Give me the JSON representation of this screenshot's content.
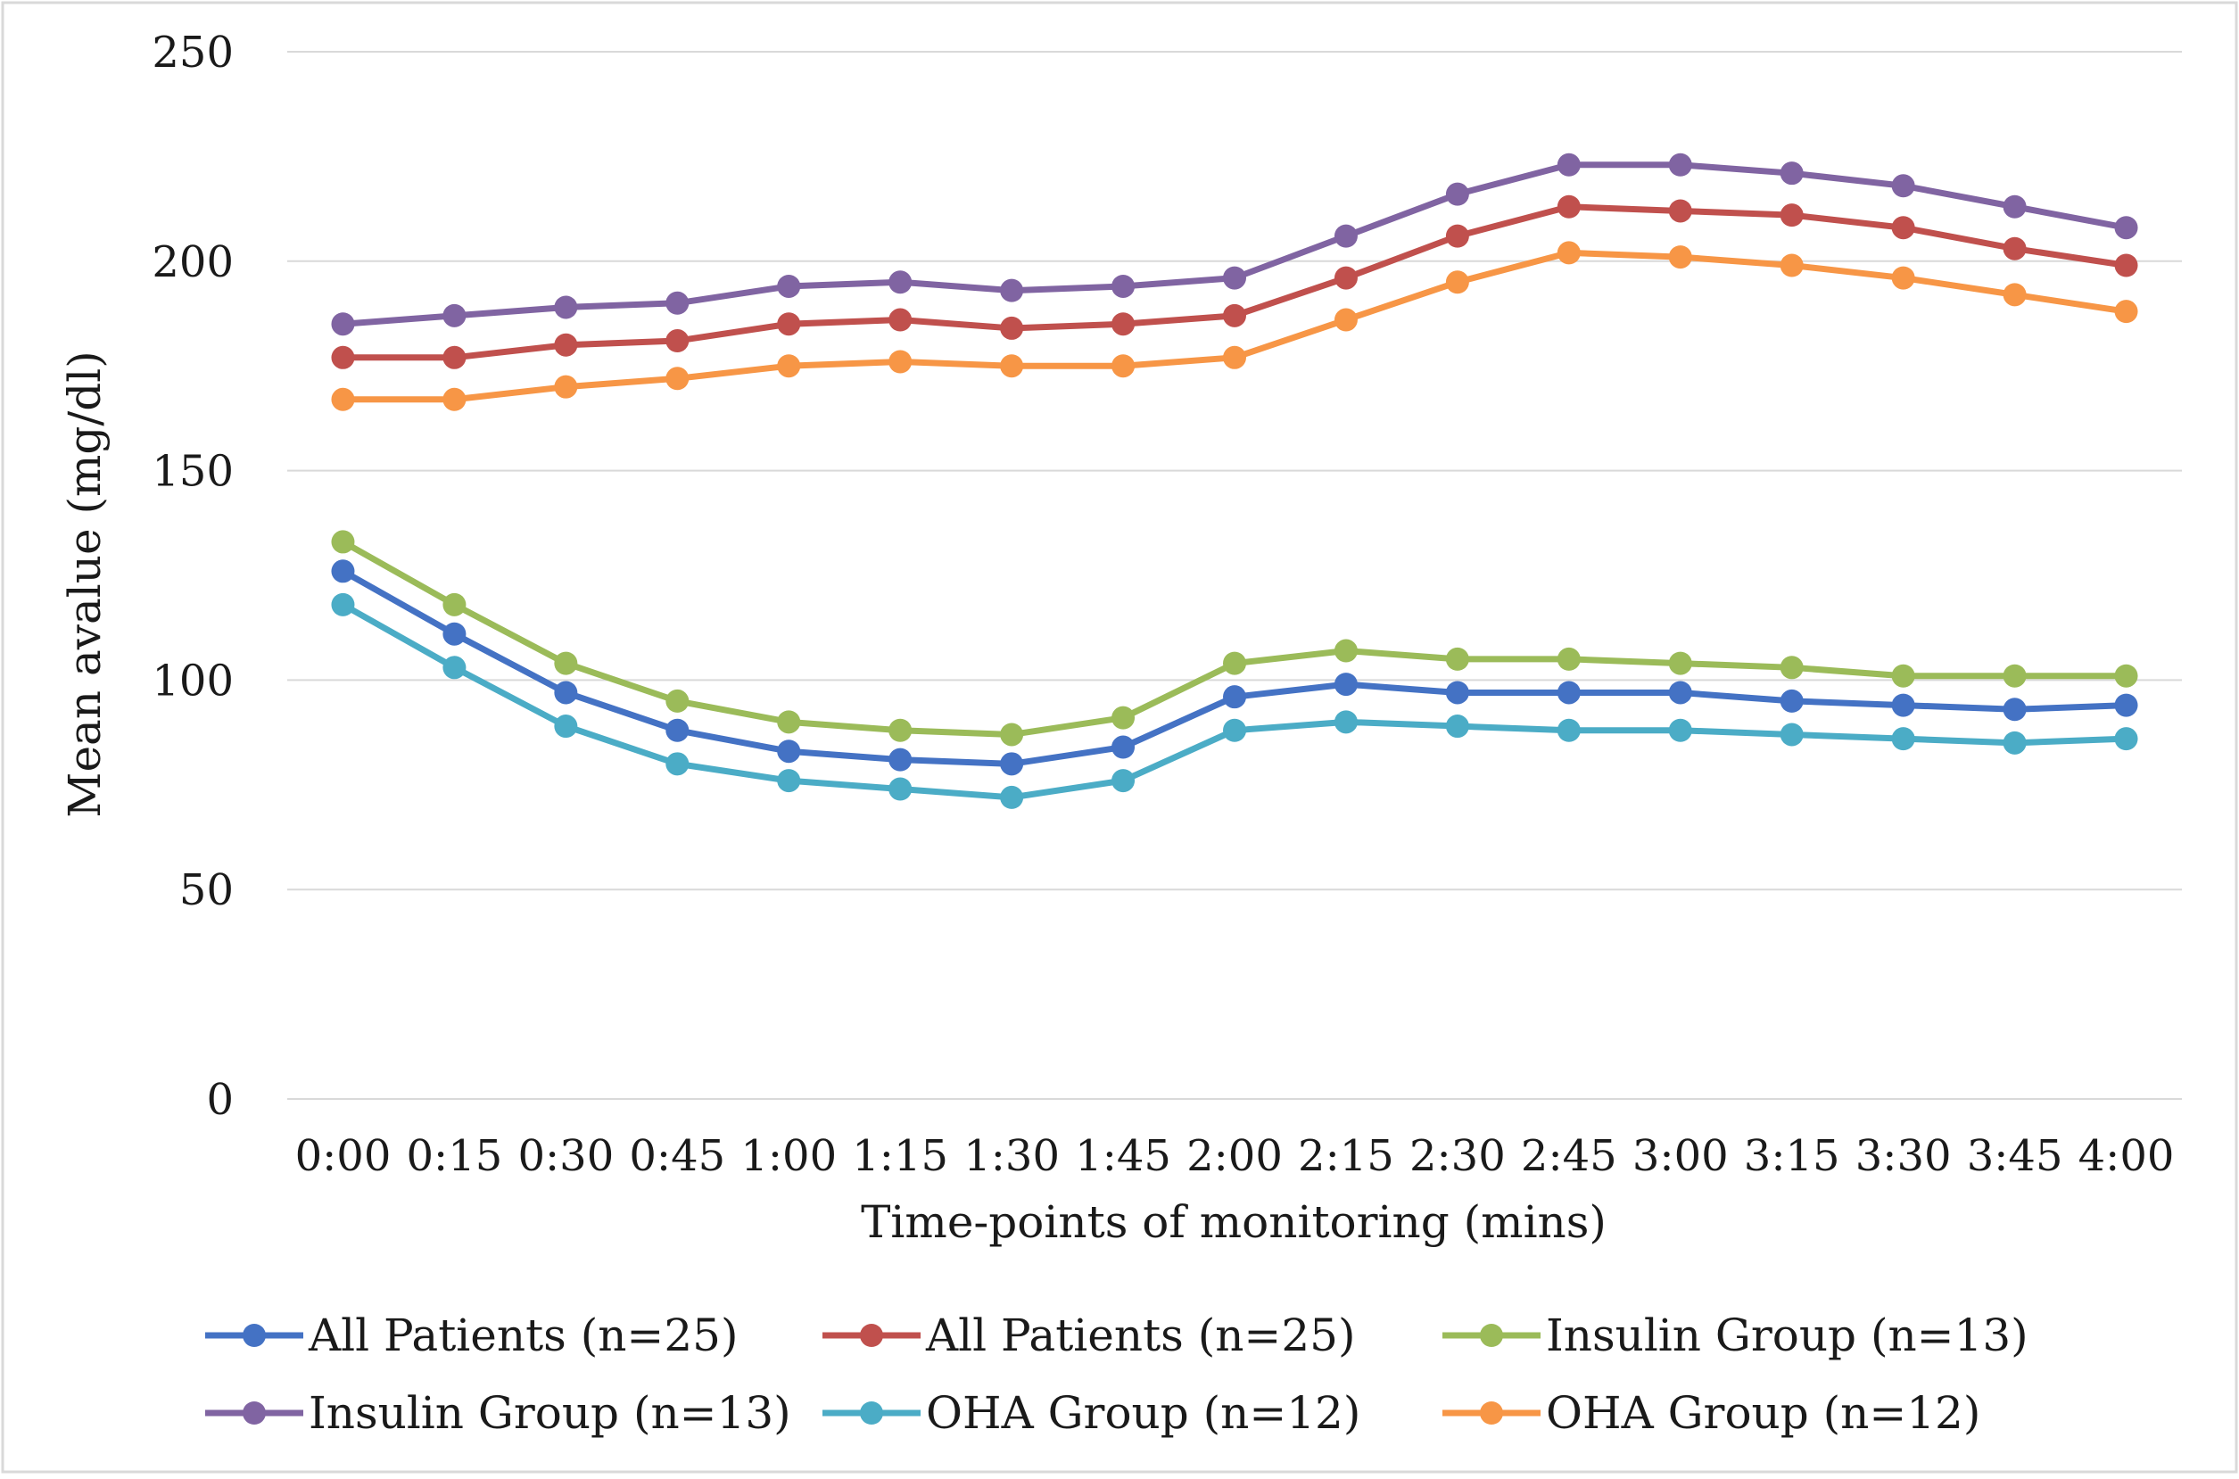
{
  "chart_data": {
    "type": "line",
    "title": "",
    "xlabel": "Time-points of monitoring (mins)",
    "ylabel": "Mean avalue (mg/dl)",
    "ylim": [
      0,
      250
    ],
    "yticks": [
      "0",
      "50",
      "100",
      "150",
      "200",
      "250"
    ],
    "categories": [
      "0:00",
      "0:15",
      "0:30",
      "0:45",
      "1:00",
      "1:15",
      "1:30",
      "1:45",
      "2:00",
      "2:15",
      "2:30",
      "2:45",
      "3:00",
      "3:15",
      "3:30",
      "3:45",
      "4:00"
    ],
    "grid": true,
    "legend_position": "bottom",
    "series": [
      {
        "name": "All Patients (n=25)",
        "color": "#4472c4",
        "values": [
          126,
          111,
          97,
          88,
          83,
          81,
          80,
          84,
          96,
          99,
          97,
          97,
          97,
          95,
          94,
          93,
          94
        ]
      },
      {
        "name": "All Patients (n=25)",
        "color": "#c0504d",
        "values": [
          177,
          177,
          180,
          181,
          185,
          186,
          184,
          185,
          187,
          196,
          206,
          213,
          212,
          211,
          208,
          203,
          199
        ]
      },
      {
        "name": "Insulin Group (n=13)",
        "color": "#9bbb59",
        "values": [
          133,
          118,
          104,
          95,
          90,
          88,
          87,
          91,
          104,
          107,
          105,
          105,
          104,
          103,
          101,
          101,
          101
        ]
      },
      {
        "name": "Insulin Group (n=13)",
        "color": "#8064a2",
        "values": [
          185,
          187,
          189,
          190,
          194,
          195,
          193,
          194,
          196,
          206,
          216,
          223,
          223,
          221,
          218,
          213,
          208
        ]
      },
      {
        "name": "OHA Group (n=12)",
        "color": "#4bacc6",
        "values": [
          118,
          103,
          89,
          80,
          76,
          74,
          72,
          76,
          88,
          90,
          89,
          88,
          88,
          87,
          86,
          85,
          86
        ]
      },
      {
        "name": "OHA Group (n=12)",
        "color": "#f79646",
        "values": [
          167,
          167,
          170,
          172,
          175,
          176,
          175,
          175,
          177,
          186,
          195,
          202,
          201,
          199,
          196,
          192,
          188
        ]
      }
    ]
  }
}
